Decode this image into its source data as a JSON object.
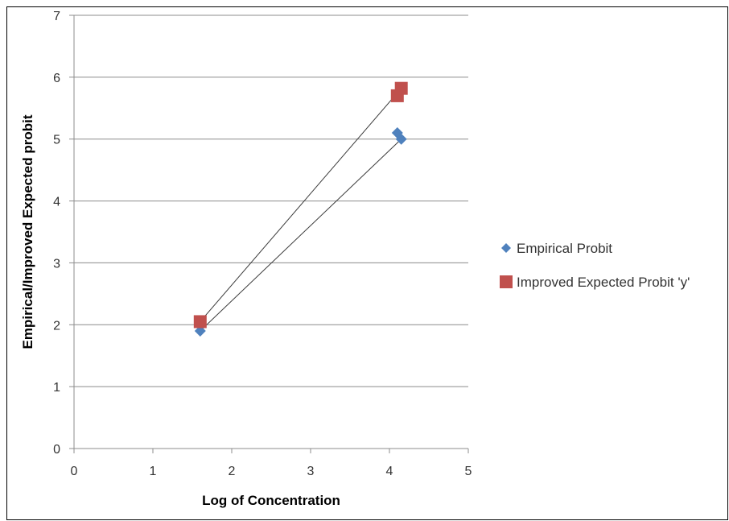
{
  "chart_data": {
    "type": "scatter",
    "title": "",
    "xlabel": "Log of Concentration",
    "ylabel": "Empirical/Improved Expected probit",
    "xlim": [
      0,
      5
    ],
    "ylim": [
      0,
      7
    ],
    "x_ticks": [
      "0",
      "1",
      "2",
      "3",
      "4",
      "5"
    ],
    "y_ticks": [
      "0",
      "1",
      "2",
      "3",
      "4",
      "5",
      "6",
      "7"
    ],
    "grid": "horizontal",
    "legend_position": "right",
    "series": [
      {
        "name": "Empirical Probit",
        "marker": "diamond",
        "color": "#4F81BD",
        "points": [
          {
            "x": 1.6,
            "y": 1.9
          },
          {
            "x": 4.1,
            "y": 5.1
          },
          {
            "x": 4.15,
            "y": 5.0
          }
        ],
        "trendline": [
          {
            "x": 1.6,
            "y": 1.9
          },
          {
            "x": 4.15,
            "y": 5.0
          }
        ]
      },
      {
        "name": "Improved Expected Probit 'y'",
        "marker": "square",
        "color": "#C0504D",
        "points": [
          {
            "x": 1.6,
            "y": 2.05
          },
          {
            "x": 4.1,
            "y": 5.7
          },
          {
            "x": 4.15,
            "y": 5.82
          }
        ],
        "trendline": [
          {
            "x": 1.6,
            "y": 2.05
          },
          {
            "x": 4.15,
            "y": 5.82
          }
        ]
      }
    ]
  }
}
